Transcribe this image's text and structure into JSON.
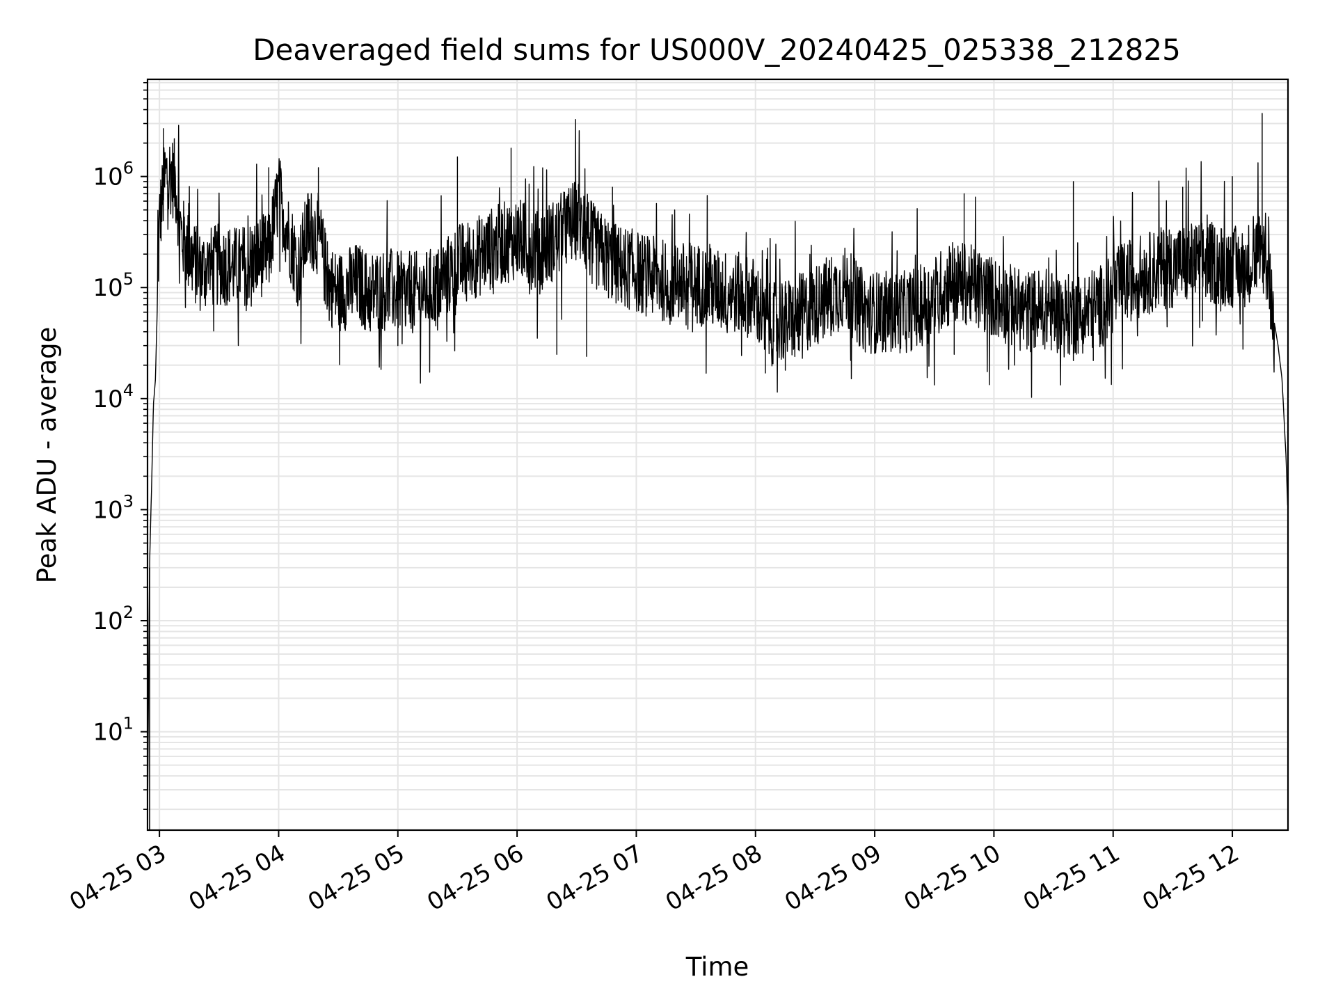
{
  "chart_data": {
    "type": "line",
    "title": "Deaveraged field sums for US000V_20240425_025338_212825",
    "xlabel": "Time",
    "ylabel": "Peak ADU - average",
    "xscale": "time",
    "yscale": "log",
    "xlim": [
      "04-25 02:54",
      "04-25 12:28"
    ],
    "ylim": [
      1.3,
      7500000
    ],
    "grid": "on (major and minor, both axes)",
    "line_color": "#000000",
    "grid_color": "#e5e5e5",
    "x_ticks": [
      "04-25 03",
      "04-25 04",
      "04-25 05",
      "04-25 06",
      "04-25 07",
      "04-25 08",
      "04-25 09",
      "04-25 10",
      "04-25 11",
      "04-25 12"
    ],
    "y_ticks": [
      {
        "base": "10",
        "exp": "1",
        "value": 10
      },
      {
        "base": "10",
        "exp": "2",
        "value": 100
      },
      {
        "base": "10",
        "exp": "3",
        "value": 1000
      },
      {
        "base": "10",
        "exp": "4",
        "value": 10000
      },
      {
        "base": "10",
        "exp": "5",
        "value": 100000
      },
      {
        "base": "10",
        "exp": "6",
        "value": 1000000
      }
    ],
    "series": [
      {
        "x": [
          "04-25 02:54",
          "04-25 02:55",
          "04-25 02:56",
          "04-25 02:57",
          "04-25 02:58",
          "04-25 03:00",
          "04-25 03:03",
          "04-25 03:05",
          "04-25 03:08",
          "04-25 03:11",
          "04-25 03:15",
          "04-25 03:20",
          "04-25 03:25",
          "04-25 03:30",
          "04-25 03:35",
          "04-25 03:40",
          "04-25 03:45",
          "04-25 03:50",
          "04-25 03:55",
          "04-25 04:00",
          "04-25 04:05",
          "04-25 04:10",
          "04-25 04:15",
          "04-25 04:20",
          "04-25 04:25",
          "04-25 04:30",
          "04-25 04:35",
          "04-25 04:40",
          "04-25 04:45",
          "04-25 04:50",
          "04-25 04:55",
          "04-25 05:00",
          "04-25 05:10",
          "04-25 05:20",
          "04-25 05:30",
          "04-25 05:40",
          "04-25 05:50",
          "04-25 06:00",
          "04-25 06:10",
          "04-25 06:20",
          "04-25 06:30",
          "04-25 06:40",
          "04-25 06:50",
          "04-25 07:00",
          "04-25 07:10",
          "04-25 07:20",
          "04-25 07:30",
          "04-25 07:40",
          "04-25 07:50",
          "04-25 08:00",
          "04-25 08:05",
          "04-25 08:15",
          "04-25 08:25",
          "04-25 08:35",
          "04-25 08:45",
          "04-25 08:55",
          "04-25 09:05",
          "04-25 09:15",
          "04-25 09:25",
          "04-25 09:35",
          "04-25 09:45",
          "04-25 09:55",
          "04-25 10:05",
          "04-25 10:15",
          "04-25 10:25",
          "04-25 10:35",
          "04-25 10:45",
          "04-25 10:55",
          "04-25 11:05",
          "04-25 11:15",
          "04-25 11:25",
          "04-25 11:35",
          "04-25 11:45",
          "04-25 11:55",
          "04-25 12:05",
          "04-25 12:10",
          "04-25 12:15",
          "04-25 12:18",
          "04-25 12:21",
          "04-25 12:23",
          "04-25 12:25",
          "04-25 12:27",
          "04-25 12:28"
        ],
        "y": [
          1.5,
          300,
          1500,
          9000,
          15000,
          400000,
          1000000,
          1100000,
          900000,
          300000,
          200000,
          140000,
          150000,
          160000,
          160000,
          150000,
          170000,
          190000,
          200000,
          700000,
          300000,
          150000,
          350000,
          300000,
          110000,
          90000,
          100000,
          110000,
          90000,
          95000,
          95000,
          90000,
          90000,
          100000,
          160000,
          190000,
          240000,
          280000,
          210000,
          280000,
          420000,
          220000,
          160000,
          140000,
          120000,
          110000,
          110000,
          95000,
          90000,
          80000,
          45000,
          50000,
          60000,
          80000,
          100000,
          60000,
          60000,
          60000,
          70000,
          100000,
          110000,
          90000,
          75000,
          60000,
          65000,
          55000,
          60000,
          70000,
          110000,
          130000,
          150000,
          160000,
          170000,
          160000,
          150000,
          180000,
          220000,
          140000,
          50000,
          30000,
          15000,
          3000,
          900
        ]
      }
    ],
    "spikes": [
      {
        "x": "04-25 03:02",
        "y": 2700000
      },
      {
        "x": "04-25 03:55",
        "y": 1200000
      },
      {
        "x": "04-25 04:20",
        "y": 1200000
      },
      {
        "x": "04-25 05:30",
        "y": 1500000
      },
      {
        "x": "04-25 05:57",
        "y": 1800000
      },
      {
        "x": "04-25 06:48",
        "y": 800000
      },
      {
        "x": "04-25 09:45",
        "y": 700000
      },
      {
        "x": "04-25 10:40",
        "y": 900000
      },
      {
        "x": "04-25 11:35",
        "y": 800000
      },
      {
        "x": "04-25 12:00",
        "y": 1000000
      },
      {
        "x": "04-25 12:15",
        "y": 3700000
      }
    ],
    "dips": [
      {
        "x": "04-25 05:00",
        "y": 30000
      },
      {
        "x": "04-25 06:20",
        "y": 25000
      },
      {
        "x": "04-25 06:35",
        "y": 24000
      },
      {
        "x": "04-25 08:05",
        "y": 17000
      },
      {
        "x": "04-25 08:15",
        "y": 18000
      },
      {
        "x": "04-25 09:40",
        "y": 25000
      },
      {
        "x": "04-25 10:40",
        "y": 22000
      },
      {
        "x": "04-25 10:50",
        "y": 22000
      },
      {
        "x": "04-25 11:45",
        "y": 50000
      }
    ]
  }
}
